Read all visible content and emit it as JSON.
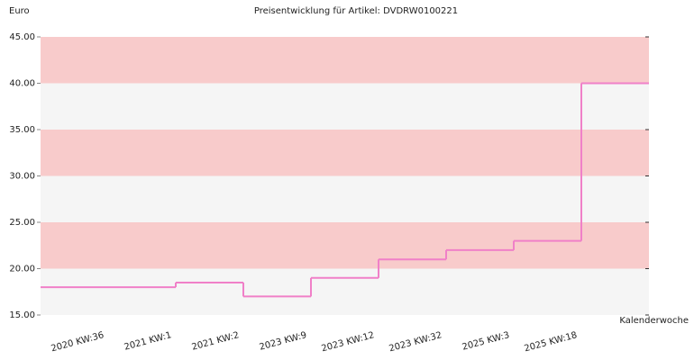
{
  "chart_data": {
    "type": "step",
    "title": "Preisentwicklung für Artikel: DVDRW0100221",
    "y_label": "Euro",
    "x_label": "Kalenderwoche",
    "categories": [
      "2020 KW:36",
      "2021 KW:1",
      "2021 KW:2",
      "2023 KW:9",
      "2023 KW:12",
      "2023 KW:32",
      "2025 KW:3",
      "2025 KW:18"
    ],
    "values": [
      18,
      18.5,
      17,
      19,
      21,
      22,
      23,
      40
    ],
    "color": "#f080c8",
    "band_colors": [
      "#f5f5f5",
      "#f8cbcb"
    ],
    "ylim": [
      15,
      45
    ],
    "yticks": [
      {
        "value": 15,
        "label": "15.00"
      },
      {
        "value": 20,
        "label": "20.00"
      },
      {
        "value": 25,
        "label": "25.00"
      },
      {
        "value": 30,
        "label": "30.00"
      },
      {
        "value": 35,
        "label": "35.00"
      },
      {
        "value": 40,
        "label": "40.00"
      },
      {
        "value": 45,
        "label": "45.00"
      }
    ]
  }
}
